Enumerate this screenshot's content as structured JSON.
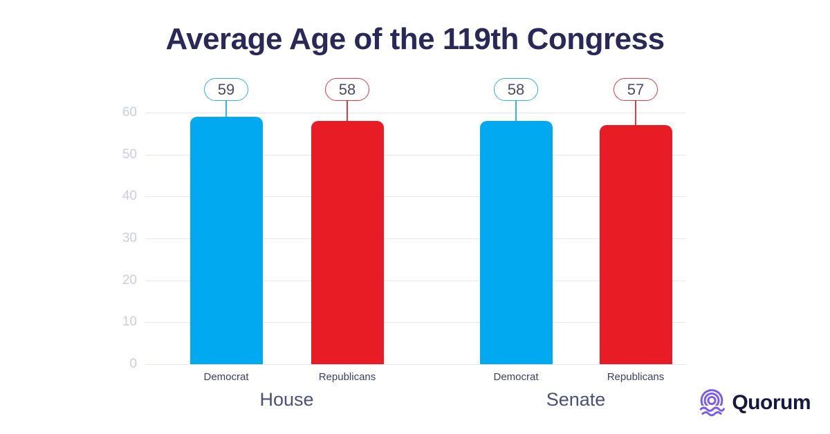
{
  "title": "Average Age of the 119th Congress",
  "branding": {
    "logo_text": "Quorum"
  },
  "colors": {
    "title_navy": "#2a2759",
    "democrat_blue": "#00a9f0",
    "democrat_accent": "#2fb4ea",
    "republican_red": "#e81c24",
    "republican_accent": "#e73740",
    "brand_purple": "#7a5cf0",
    "axis_tick": "#c9cee6",
    "gridline": "#e4e8f4",
    "party_label": "#3d4066",
    "group_label": "#4c4f7d",
    "badge_text": "#4b4970"
  },
  "chart_data": {
    "type": "bar",
    "title": "Average Age of the 119th Congress",
    "xlabel": "",
    "ylabel": "",
    "ylim": [
      0,
      60
    ],
    "yticks": [
      0,
      10,
      20,
      30,
      40,
      50,
      60
    ],
    "grid": true,
    "legend": "none",
    "value_labels": "pill badges above bars",
    "groups": [
      {
        "label": "House",
        "bars": [
          {
            "party": "Democrat",
            "value": 59,
            "color": "#00a9f0",
            "accent": "#2fb4ea"
          },
          {
            "party": "Republicans",
            "value": 58,
            "color": "#e81c24",
            "accent": "#e73740"
          }
        ]
      },
      {
        "label": "Senate",
        "bars": [
          {
            "party": "Democrat",
            "value": 58,
            "color": "#00a9f0",
            "accent": "#2fb4ea"
          },
          {
            "party": "Republicans",
            "value": 57,
            "color": "#e81c24",
            "accent": "#e73740"
          }
        ]
      }
    ]
  }
}
